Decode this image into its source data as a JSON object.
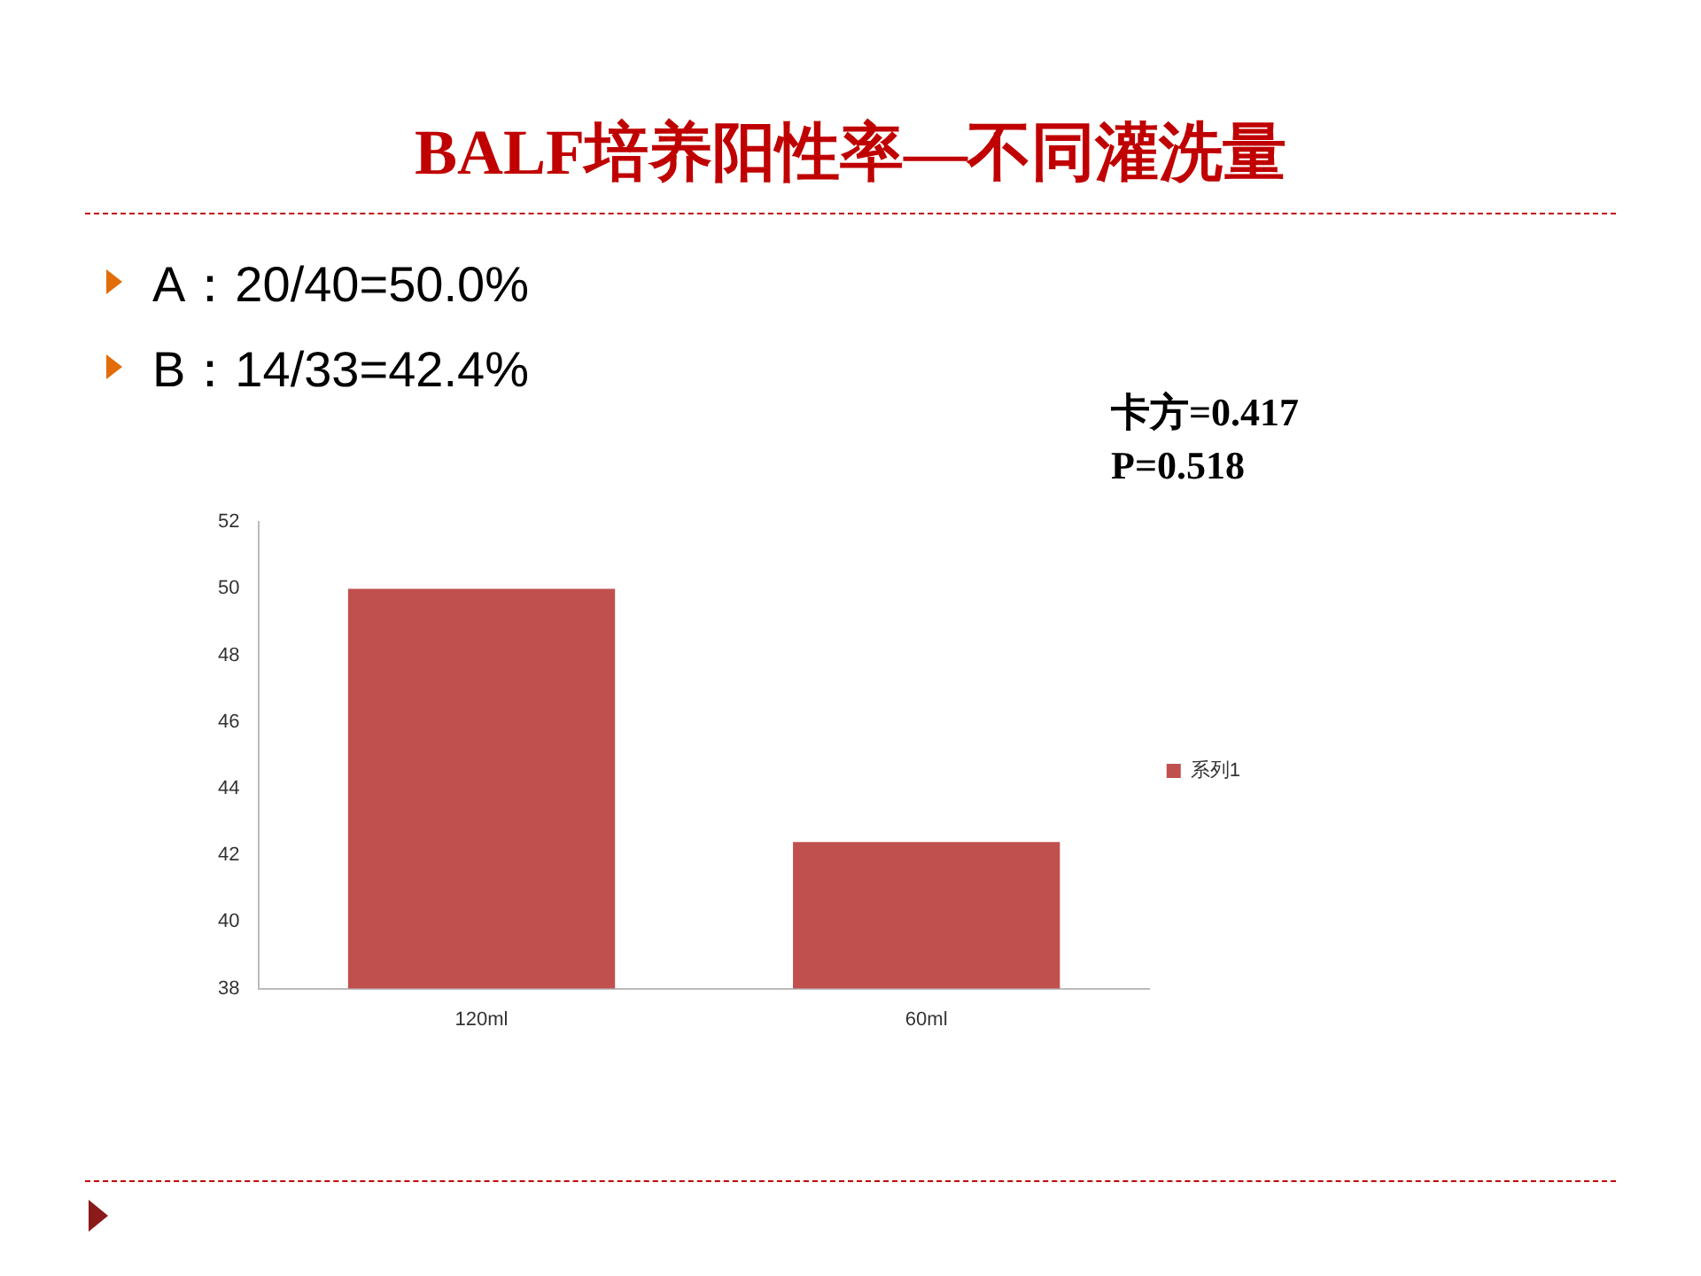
{
  "chart_data": {
    "type": "bar",
    "title": "BALF培养阳性率—不同灌洗量",
    "annotations": [
      "A：20/40=50.0%",
      "B：14/33=42.4%",
      "卡方=0.417",
      "P=0.518"
    ],
    "categories": [
      "120ml",
      "60ml"
    ],
    "series": [
      {
        "name": "系列1",
        "color": "#c0504d",
        "values": [
          50.0,
          42.4
        ]
      }
    ],
    "ylim": [
      38,
      52
    ],
    "yticks": [
      38,
      40,
      42,
      44,
      46,
      48,
      50,
      52
    ],
    "grid": false,
    "legend": "right"
  }
}
